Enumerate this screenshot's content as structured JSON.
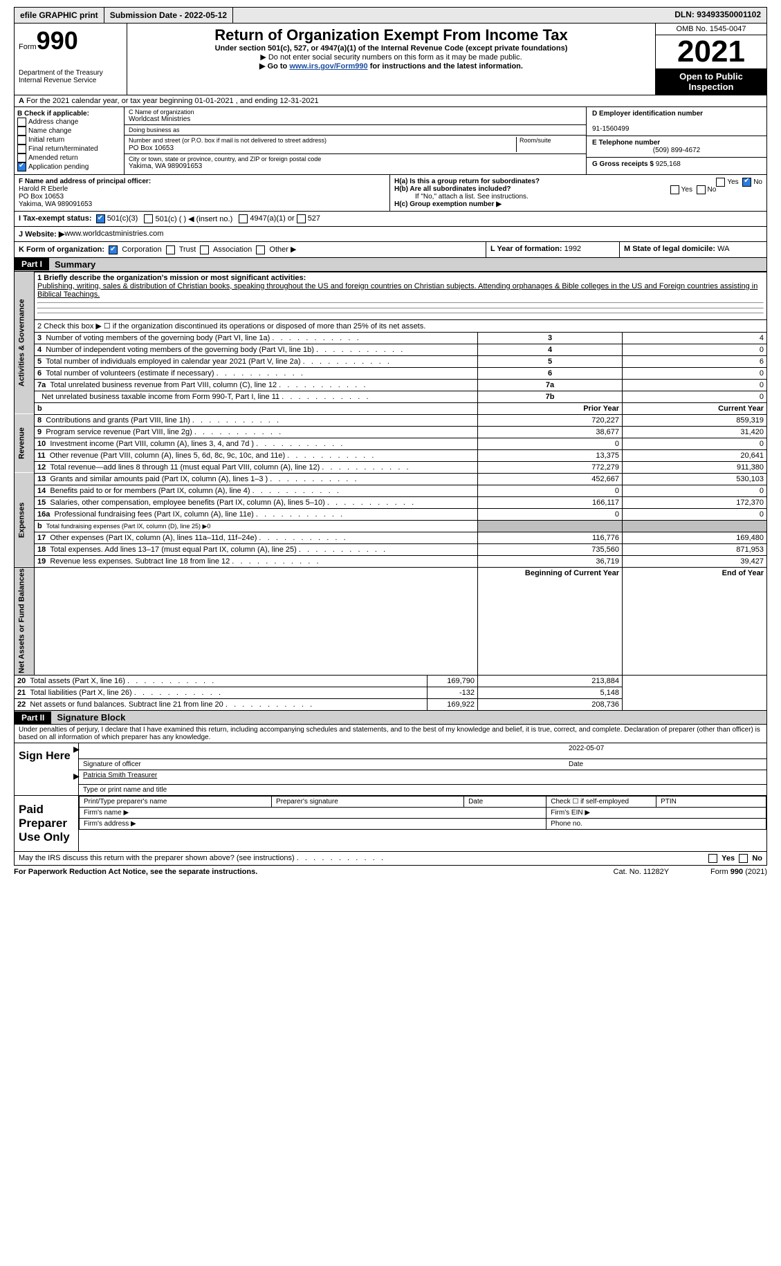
{
  "topbar": {
    "efile": "efile GRAPHIC print",
    "submission": "Submission Date - 2022-05-12",
    "dln": "DLN: 93493350001102"
  },
  "header": {
    "form_label": "Form",
    "form_num": "990",
    "dept": "Department of the Treasury\nInternal Revenue Service",
    "title": "Return of Organization Exempt From Income Tax",
    "subtitle": "Under section 501(c), 527, or 4947(a)(1) of the Internal Revenue Code (except private foundations)",
    "note1": "Do not enter social security numbers on this form as it may be made public.",
    "note2_pre": "Go to ",
    "note2_link": "www.irs.gov/Form990",
    "note2_post": " for instructions and the latest information.",
    "omb": "OMB No. 1545-0047",
    "year": "2021",
    "open": "Open to Public Inspection"
  },
  "secA": {
    "label_a": "A",
    "text": " For the 2021 calendar year, or tax year beginning 01-01-2021   , and ending 12-31-2021"
  },
  "secB": {
    "title": "B Check if applicable:",
    "items": [
      "Address change",
      "Name change",
      "Initial return",
      "Final return/terminated",
      "Amended return",
      "Application pending"
    ]
  },
  "secC": {
    "name_label": "C Name of organization",
    "name": "Worldcast Ministries",
    "dba": "Doing business as",
    "addr_label": "Number and street (or P.O. box if mail is not delivered to street address)",
    "room": "Room/suite",
    "addr": "PO Box 10653",
    "city_label": "City or town, state or province, country, and ZIP or foreign postal code",
    "city": "Yakima, WA  989091653"
  },
  "secD": {
    "label": "D Employer identification number",
    "val": "91-1560499"
  },
  "secE": {
    "label": "E Telephone number",
    "val": "(509) 899-4672"
  },
  "secG": {
    "label": "G Gross receipts $",
    "val": "925,168"
  },
  "secF": {
    "label": "F  Name and address of principal officer:",
    "name": "Harold R Eberle",
    "addr": "PO Box 10653",
    "city": "Yakima, WA  989091653"
  },
  "secH": {
    "a": "H(a)  Is this a group return for subordinates?",
    "b": "H(b)  Are all subordinates included?",
    "b_note": "If \"No,\" attach a list. See instructions.",
    "c": "H(c)  Group exemption number ▶"
  },
  "secI": {
    "label": "I   Tax-exempt status:",
    "o1": "501(c)(3)",
    "o2": "501(c) (  ) ◀ (insert no.)",
    "o3": "4947(a)(1) or",
    "o4": "527"
  },
  "secJ": {
    "label": "J   Website: ▶",
    "val": "  www.worldcastministries.com"
  },
  "secK": {
    "label": "K Form of organization:",
    "o1": "Corporation",
    "o2": "Trust",
    "o3": "Association",
    "o4": "Other ▶"
  },
  "secL": {
    "label": "L Year of formation:",
    "val": "1992"
  },
  "secM": {
    "label": "M State of legal domicile:",
    "val": "WA"
  },
  "part1": {
    "hdr": "Part I",
    "title": "Summary",
    "l1_label": "1  Briefly describe the organization's mission or most significant activities:",
    "l1_text": "Publishing, writing, sales & distribution of Christian books, speaking throughout the US and foreign countries on Christian subjects. Attending orphanages & Bible colleges in the US and Foreign countries assisting in Biblical Teachings.",
    "l2": "2   Check this box ▶ ☐  if the organization discontinued its operations or disposed of more than 25% of its net assets.",
    "tab_ag": "Activities & Governance",
    "tab_rev": "Revenue",
    "tab_exp": "Expenses",
    "tab_net": "Net Assets or Fund Balances",
    "col_prior": "Prior Year",
    "col_curr": "Current Year",
    "col_begin": "Beginning of Current Year",
    "col_end": "End of Year",
    "lines_ag": [
      {
        "n": "3",
        "t": "Number of voting members of the governing body (Part VI, line 1a)",
        "box": "3",
        "v": "4"
      },
      {
        "n": "4",
        "t": "Number of independent voting members of the governing body (Part VI, line 1b)",
        "box": "4",
        "v": "0"
      },
      {
        "n": "5",
        "t": "Total number of individuals employed in calendar year 2021 (Part V, line 2a)",
        "box": "5",
        "v": "6"
      },
      {
        "n": "6",
        "t": "Total number of volunteers (estimate if necessary)",
        "box": "6",
        "v": "0"
      },
      {
        "n": "7a",
        "t": "Total unrelated business revenue from Part VIII, column (C), line 12",
        "box": "7a",
        "v": "0"
      },
      {
        "n": "",
        "t": "Net unrelated business taxable income from Form 990-T, Part I, line 11",
        "box": "7b",
        "v": "0"
      }
    ],
    "lines_rev": [
      {
        "n": "8",
        "t": "Contributions and grants (Part VIII, line 1h)",
        "p": "720,227",
        "c": "859,319"
      },
      {
        "n": "9",
        "t": "Program service revenue (Part VIII, line 2g)",
        "p": "38,677",
        "c": "31,420"
      },
      {
        "n": "10",
        "t": "Investment income (Part VIII, column (A), lines 3, 4, and 7d )",
        "p": "0",
        "c": "0"
      },
      {
        "n": "11",
        "t": "Other revenue (Part VIII, column (A), lines 5, 6d, 8c, 9c, 10c, and 11e)",
        "p": "13,375",
        "c": "20,641"
      },
      {
        "n": "12",
        "t": "Total revenue—add lines 8 through 11 (must equal Part VIII, column (A), line 12)",
        "p": "772,279",
        "c": "911,380"
      }
    ],
    "lines_exp": [
      {
        "n": "13",
        "t": "Grants and similar amounts paid (Part IX, column (A), lines 1–3 )",
        "p": "452,667",
        "c": "530,103"
      },
      {
        "n": "14",
        "t": "Benefits paid to or for members (Part IX, column (A), line 4)",
        "p": "0",
        "c": "0"
      },
      {
        "n": "15",
        "t": "Salaries, other compensation, employee benefits (Part IX, column (A), lines 5–10)",
        "p": "166,117",
        "c": "172,370"
      },
      {
        "n": "16a",
        "t": "Professional fundraising fees (Part IX, column (A), line 11e)",
        "p": "0",
        "c": "0"
      },
      {
        "n": "b",
        "t": "Total fundraising expenses (Part IX, column (D), line 25) ▶0",
        "p": "",
        "c": "",
        "grey": true,
        "small": true
      },
      {
        "n": "17",
        "t": "Other expenses (Part IX, column (A), lines 11a–11d, 11f–24e)",
        "p": "116,776",
        "c": "169,480"
      },
      {
        "n": "18",
        "t": "Total expenses. Add lines 13–17 (must equal Part IX, column (A), line 25)",
        "p": "735,560",
        "c": "871,953"
      },
      {
        "n": "19",
        "t": "Revenue less expenses. Subtract line 18 from line 12",
        "p": "36,719",
        "c": "39,427"
      }
    ],
    "lines_net": [
      {
        "n": "20",
        "t": "Total assets (Part X, line 16)",
        "p": "169,790",
        "c": "213,884"
      },
      {
        "n": "21",
        "t": "Total liabilities (Part X, line 26)",
        "p": "-132",
        "c": "5,148"
      },
      {
        "n": "22",
        "t": "Net assets or fund balances. Subtract line 21 from line 20",
        "p": "169,922",
        "c": "208,736"
      }
    ]
  },
  "part2": {
    "hdr": "Part II",
    "title": "Signature Block",
    "decl": "Under penalties of perjury, I declare that I have examined this return, including accompanying schedules and statements, and to the best of my knowledge and belief, it is true, correct, and complete. Declaration of preparer (other than officer) is based on all information of which preparer has any knowledge.",
    "sign_here": "Sign Here",
    "sig_officer": "Signature of officer",
    "sig_date": "Date",
    "sig_date_val": "2022-05-07",
    "typed": "Patricia Smith  Treasurer",
    "typed_label": "Type or print name and title",
    "paid": "Paid Preparer Use Only",
    "ph1": "Print/Type preparer's name",
    "ph2": "Preparer's signature",
    "ph3": "Date",
    "ph4": "Check ☐ if self-employed",
    "ph5": "PTIN",
    "firm_name": "Firm's name   ▶",
    "firm_ein": "Firm's EIN ▶",
    "firm_addr": "Firm's address ▶",
    "phone": "Phone no.",
    "discuss": "May the IRS discuss this return with the preparer shown above? (see instructions)",
    "yes": "Yes",
    "no": "No"
  },
  "footer": {
    "pra": "For Paperwork Reduction Act Notice, see the separate instructions.",
    "cat": "Cat. No. 11282Y",
    "form": "Form 990 (2021)"
  }
}
